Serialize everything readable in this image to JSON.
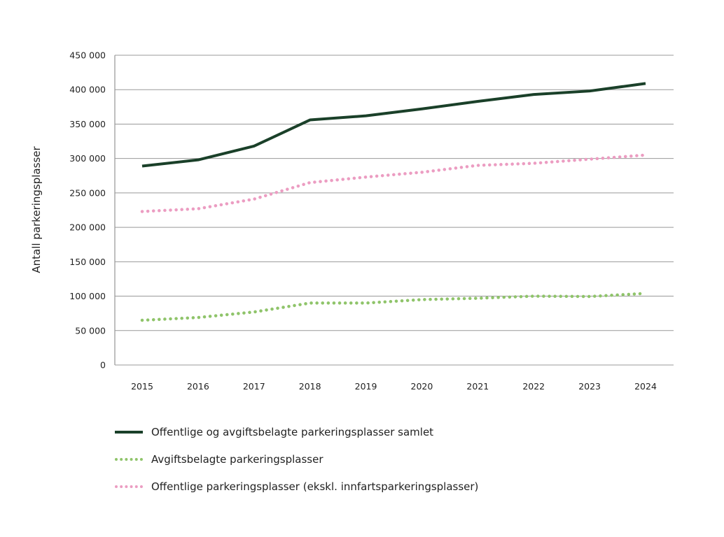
{
  "chart_data": {
    "type": "line",
    "title": "",
    "xlabel": "",
    "ylabel": "Antall parkeringsplasser",
    "x": [
      "2015",
      "2016",
      "2017",
      "2018",
      "2019",
      "2020",
      "2021",
      "2022",
      "2023",
      "2024"
    ],
    "ylim": [
      0,
      450000
    ],
    "yticks": [
      0,
      50000,
      100000,
      150000,
      200000,
      250000,
      300000,
      350000,
      400000,
      450000
    ],
    "ytick_labels": [
      "0",
      "50 000",
      "100 000",
      "150 000",
      "200 000",
      "250 000",
      "300 000",
      "350 000",
      "400 000",
      "450 000"
    ],
    "grid": "horizontal",
    "legend_position": "bottom",
    "series": [
      {
        "name": "Offentlige og avgiftsbelagte parkeringsplasser samlet",
        "color": "#1a4029",
        "style": "solid",
        "values": [
          289000,
          298000,
          318000,
          356000,
          362000,
          372000,
          383000,
          393000,
          398000,
          409000
        ]
      },
      {
        "name": "Avgiftsbelagte parkeringsplasser",
        "color": "#8fc46a",
        "style": "dotted",
        "values": [
          65000,
          69000,
          77000,
          90000,
          90000,
          95000,
          97000,
          100000,
          99500,
          104000
        ]
      },
      {
        "name": "Offentlige parkeringsplasser (ekskl. innfartsparkeringsplasser)",
        "color": "#ec9dc2",
        "style": "dotted",
        "values": [
          223000,
          227000,
          241000,
          265000,
          273000,
          280000,
          290000,
          293000,
          299000,
          305000
        ]
      }
    ]
  }
}
